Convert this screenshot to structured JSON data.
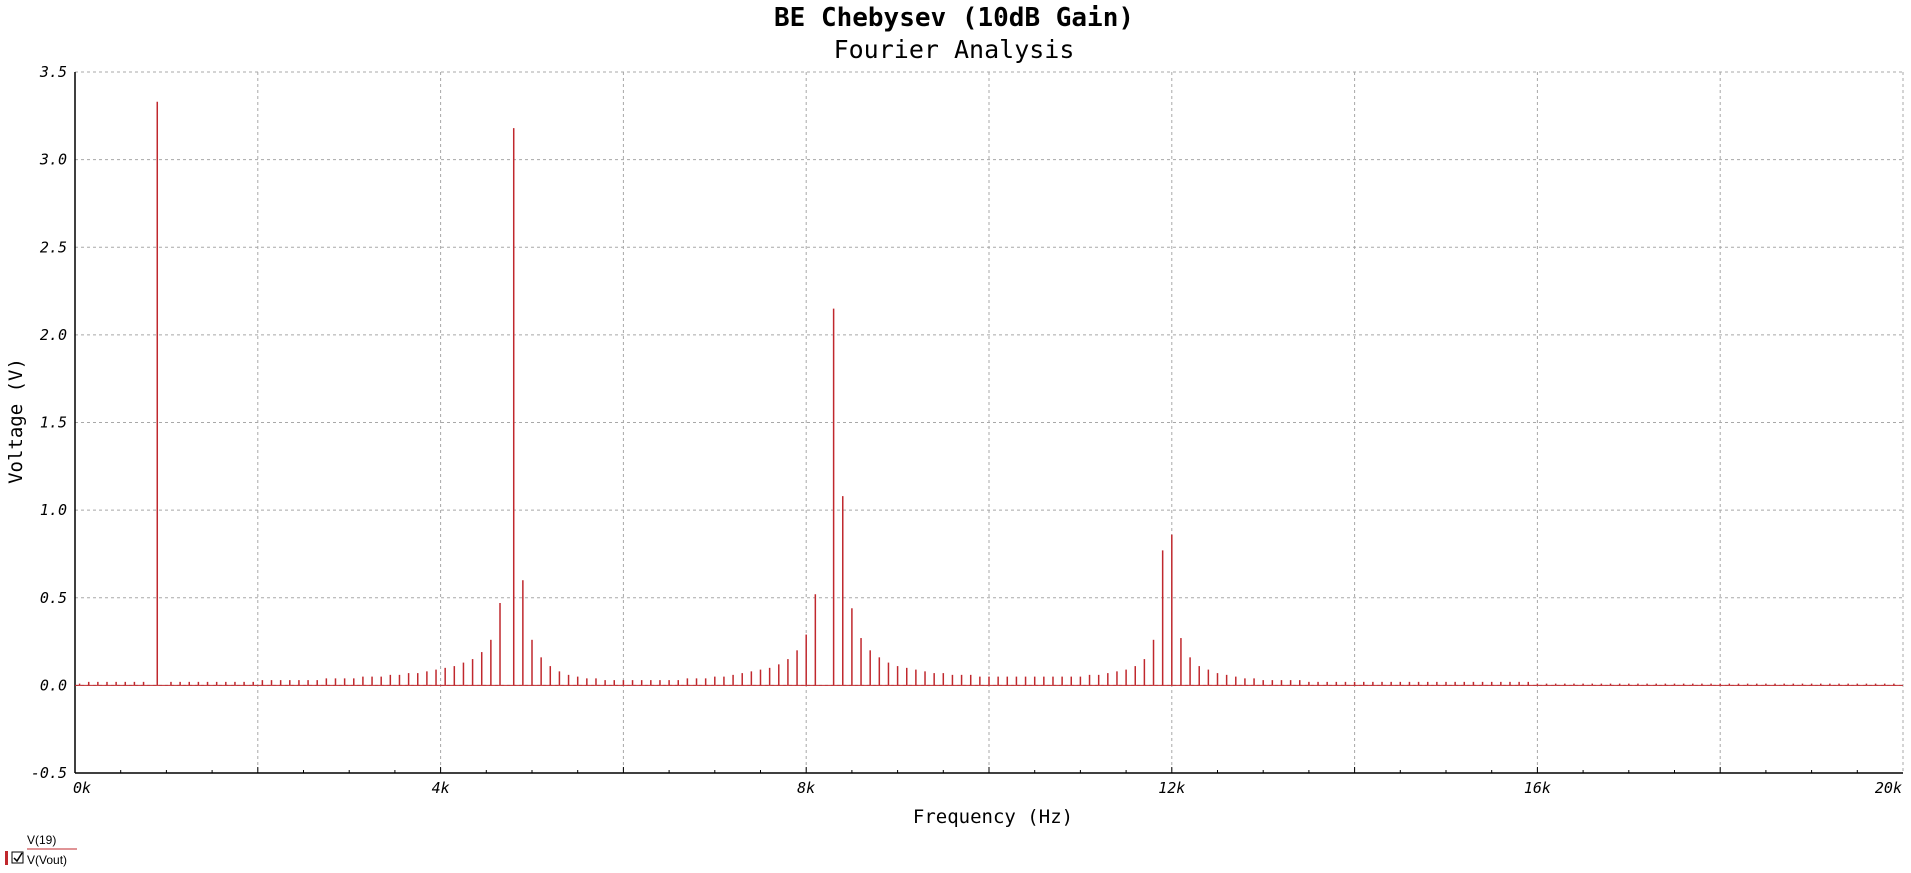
{
  "chart_data": {
    "type": "bar",
    "title": "BE Chebysev (10dB Gain)",
    "subtitle": "Fourier Analysis",
    "xlabel": "Frequency (Hz)",
    "ylabel": "Voltage (V)",
    "xlim": [
      0,
      20000
    ],
    "ylim": [
      -0.5,
      3.5
    ],
    "x_ticks": [
      {
        "value": 0,
        "label": "0k"
      },
      {
        "value": 4000,
        "label": "4k"
      },
      {
        "value": 8000,
        "label": "8k"
      },
      {
        "value": 12000,
        "label": "12k"
      },
      {
        "value": 16000,
        "label": "16k"
      },
      {
        "value": 20000,
        "label": "20k"
      }
    ],
    "y_ticks": [
      {
        "value": 3.5,
        "label": "3.5"
      },
      {
        "value": 3.0,
        "label": "3.0"
      },
      {
        "value": 2.5,
        "label": "2.5"
      },
      {
        "value": 2.0,
        "label": "2.0"
      },
      {
        "value": 1.5,
        "label": "1.5"
      },
      {
        "value": 1.0,
        "label": "1.0"
      },
      {
        "value": 0.5,
        "label": "0.5"
      },
      {
        "value": 0.0,
        "label": "0.0"
      },
      {
        "value": -0.5,
        "label": "-0.5"
      }
    ],
    "grid": true,
    "legend_position": "bottom-left",
    "series": [
      {
        "name": "V(Vout)",
        "color": "#c0282d",
        "points": [
          [
            50,
            0.01
          ],
          [
            150,
            0.02
          ],
          [
            250,
            0.02
          ],
          [
            350,
            0.02
          ],
          [
            450,
            0.02
          ],
          [
            550,
            0.02
          ],
          [
            650,
            0.02
          ],
          [
            750,
            0.02
          ],
          [
            900,
            3.33
          ],
          [
            1050,
            0.02
          ],
          [
            1150,
            0.02
          ],
          [
            1250,
            0.02
          ],
          [
            1350,
            0.02
          ],
          [
            1450,
            0.02
          ],
          [
            1550,
            0.02
          ],
          [
            1650,
            0.02
          ],
          [
            1750,
            0.02
          ],
          [
            1850,
            0.02
          ],
          [
            1950,
            0.02
          ],
          [
            2050,
            0.03
          ],
          [
            2150,
            0.03
          ],
          [
            2250,
            0.03
          ],
          [
            2350,
            0.03
          ],
          [
            2450,
            0.03
          ],
          [
            2550,
            0.03
          ],
          [
            2650,
            0.03
          ],
          [
            2750,
            0.04
          ],
          [
            2850,
            0.04
          ],
          [
            2950,
            0.04
          ],
          [
            3050,
            0.04
          ],
          [
            3150,
            0.05
          ],
          [
            3250,
            0.05
          ],
          [
            3350,
            0.05
          ],
          [
            3450,
            0.06
          ],
          [
            3550,
            0.06
          ],
          [
            3650,
            0.07
          ],
          [
            3750,
            0.07
          ],
          [
            3850,
            0.08
          ],
          [
            3950,
            0.09
          ],
          [
            4050,
            0.1
          ],
          [
            4150,
            0.11
          ],
          [
            4250,
            0.13
          ],
          [
            4350,
            0.15
          ],
          [
            4450,
            0.19
          ],
          [
            4550,
            0.26
          ],
          [
            4650,
            0.47
          ],
          [
            4800,
            3.18
          ],
          [
            4900,
            0.6
          ],
          [
            5000,
            0.26
          ],
          [
            5100,
            0.16
          ],
          [
            5200,
            0.11
          ],
          [
            5300,
            0.08
          ],
          [
            5400,
            0.06
          ],
          [
            5500,
            0.05
          ],
          [
            5600,
            0.04
          ],
          [
            5700,
            0.04
          ],
          [
            5800,
            0.03
          ],
          [
            5900,
            0.03
          ],
          [
            6000,
            0.03
          ],
          [
            6100,
            0.03
          ],
          [
            6200,
            0.03
          ],
          [
            6300,
            0.03
          ],
          [
            6400,
            0.03
          ],
          [
            6500,
            0.03
          ],
          [
            6600,
            0.03
          ],
          [
            6700,
            0.04
          ],
          [
            6800,
            0.04
          ],
          [
            6900,
            0.04
          ],
          [
            7000,
            0.05
          ],
          [
            7100,
            0.05
          ],
          [
            7200,
            0.06
          ],
          [
            7300,
            0.07
          ],
          [
            7400,
            0.08
          ],
          [
            7500,
            0.09
          ],
          [
            7600,
            0.1
          ],
          [
            7700,
            0.12
          ],
          [
            7800,
            0.15
          ],
          [
            7900,
            0.2
          ],
          [
            8000,
            0.29
          ],
          [
            8100,
            0.52
          ],
          [
            8300,
            2.15
          ],
          [
            8400,
            1.08
          ],
          [
            8500,
            0.44
          ],
          [
            8600,
            0.27
          ],
          [
            8700,
            0.2
          ],
          [
            8800,
            0.16
          ],
          [
            8900,
            0.13
          ],
          [
            9000,
            0.11
          ],
          [
            9100,
            0.1
          ],
          [
            9200,
            0.09
          ],
          [
            9300,
            0.08
          ],
          [
            9400,
            0.07
          ],
          [
            9500,
            0.07
          ],
          [
            9600,
            0.06
          ],
          [
            9700,
            0.06
          ],
          [
            9800,
            0.06
          ],
          [
            9900,
            0.05
          ],
          [
            10000,
            0.05
          ],
          [
            10100,
            0.05
          ],
          [
            10200,
            0.05
          ],
          [
            10300,
            0.05
          ],
          [
            10400,
            0.05
          ],
          [
            10500,
            0.05
          ],
          [
            10600,
            0.05
          ],
          [
            10700,
            0.05
          ],
          [
            10800,
            0.05
          ],
          [
            10900,
            0.05
          ],
          [
            11000,
            0.05
          ],
          [
            11100,
            0.06
          ],
          [
            11200,
            0.06
          ],
          [
            11300,
            0.07
          ],
          [
            11400,
            0.08
          ],
          [
            11500,
            0.09
          ],
          [
            11600,
            0.11
          ],
          [
            11700,
            0.15
          ],
          [
            11800,
            0.26
          ],
          [
            11900,
            0.77
          ],
          [
            12000,
            0.86
          ],
          [
            12100,
            0.27
          ],
          [
            12200,
            0.16
          ],
          [
            12300,
            0.11
          ],
          [
            12400,
            0.09
          ],
          [
            12500,
            0.07
          ],
          [
            12600,
            0.06
          ],
          [
            12700,
            0.05
          ],
          [
            12800,
            0.04
          ],
          [
            12900,
            0.04
          ],
          [
            13000,
            0.03
          ],
          [
            13100,
            0.03
          ],
          [
            13200,
            0.03
          ],
          [
            13300,
            0.03
          ],
          [
            13400,
            0.03
          ],
          [
            13500,
            0.02
          ],
          [
            13600,
            0.02
          ],
          [
            13700,
            0.02
          ],
          [
            13800,
            0.02
          ],
          [
            13900,
            0.02
          ],
          [
            14000,
            0.02
          ],
          [
            14100,
            0.02
          ],
          [
            14200,
            0.02
          ],
          [
            14300,
            0.02
          ],
          [
            14400,
            0.02
          ],
          [
            14500,
            0.02
          ],
          [
            14600,
            0.02
          ],
          [
            14700,
            0.02
          ],
          [
            14800,
            0.02
          ],
          [
            14900,
            0.02
          ],
          [
            15000,
            0.02
          ],
          [
            15100,
            0.02
          ],
          [
            15200,
            0.02
          ],
          [
            15300,
            0.02
          ],
          [
            15400,
            0.02
          ],
          [
            15500,
            0.02
          ],
          [
            15600,
            0.02
          ],
          [
            15700,
            0.02
          ],
          [
            15800,
            0.02
          ],
          [
            15900,
            0.02
          ],
          [
            16000,
            0.01
          ],
          [
            16100,
            0.01
          ],
          [
            16200,
            0.01
          ],
          [
            16300,
            0.01
          ],
          [
            16400,
            0.01
          ],
          [
            16500,
            0.01
          ],
          [
            16600,
            0.01
          ],
          [
            16700,
            0.01
          ],
          [
            16800,
            0.01
          ],
          [
            16900,
            0.01
          ],
          [
            17000,
            0.01
          ],
          [
            17100,
            0.01
          ],
          [
            17200,
            0.01
          ],
          [
            17300,
            0.01
          ],
          [
            17400,
            0.01
          ],
          [
            17500,
            0.01
          ],
          [
            17600,
            0.01
          ],
          [
            17700,
            0.01
          ],
          [
            17800,
            0.01
          ],
          [
            17900,
            0.01
          ],
          [
            18000,
            0.01
          ],
          [
            18100,
            0.01
          ],
          [
            18200,
            0.01
          ],
          [
            18300,
            0.01
          ],
          [
            18400,
            0.01
          ],
          [
            18500,
            0.01
          ],
          [
            18600,
            0.01
          ],
          [
            18700,
            0.01
          ],
          [
            18800,
            0.01
          ],
          [
            18900,
            0.01
          ],
          [
            19000,
            0.01
          ],
          [
            19100,
            0.01
          ],
          [
            19200,
            0.01
          ],
          [
            19300,
            0.01
          ],
          [
            19400,
            0.01
          ],
          [
            19500,
            0.01
          ],
          [
            19600,
            0.01
          ],
          [
            19700,
            0.01
          ],
          [
            19800,
            0.01
          ],
          [
            19900,
            0.01
          ]
        ]
      }
    ],
    "legend": [
      {
        "label": "V(19)",
        "checked": false
      },
      {
        "label": "V(Vout)",
        "checked": true,
        "color": "#c0282d"
      }
    ]
  }
}
